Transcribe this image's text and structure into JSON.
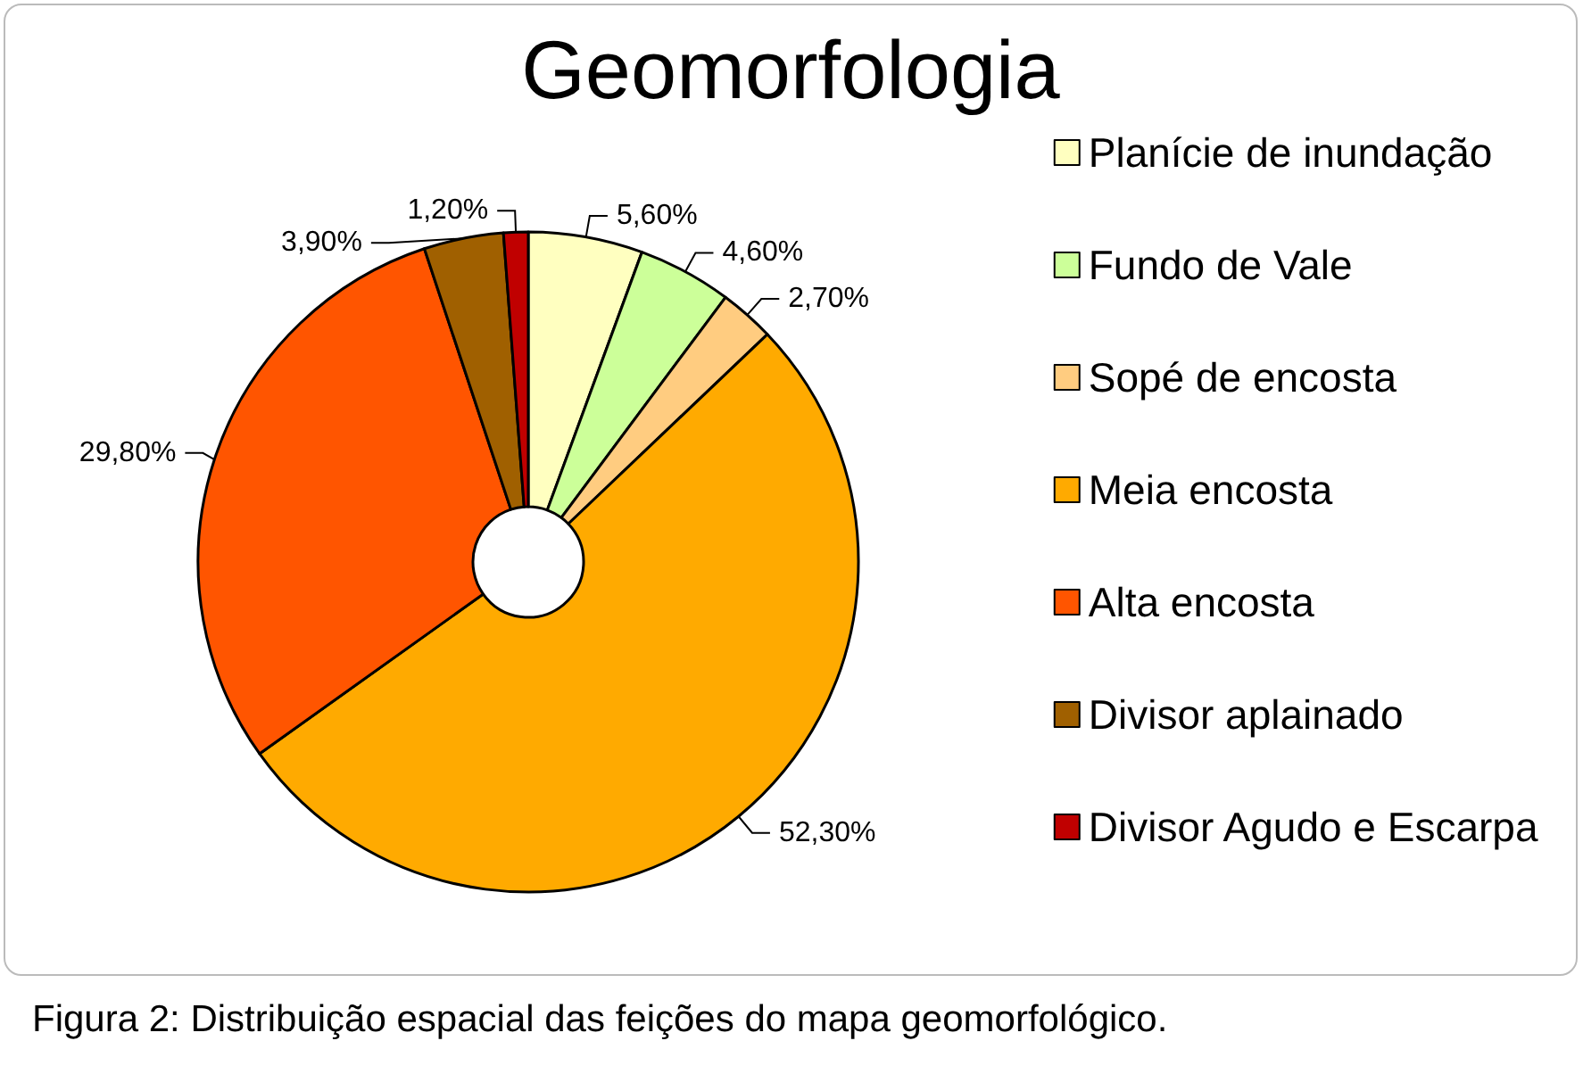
{
  "chart_data": {
    "type": "pie",
    "title": "Geomorfologia",
    "categories": [
      "Planície de inundação",
      "Fundo de Vale",
      "Sopé de encosta",
      "Meia encosta",
      "Alta encosta",
      "Divisor aplainado",
      "Divisor Agudo e Escarpa"
    ],
    "values": [
      5.6,
      4.6,
      2.7,
      52.3,
      29.8,
      3.9,
      1.2
    ],
    "value_labels": [
      "5,60%",
      "4,60%",
      "2,70%",
      "52,30%",
      "29,80%",
      "3,90%",
      "1,20%"
    ],
    "colors": [
      "#ffffc0",
      "#ccff99",
      "#ffcc80",
      "#ffaa00",
      "#ff5500",
      "#a06000",
      "#c00000"
    ],
    "legend": "right",
    "annotations": [
      "Figura 2: Distribuição espacial das feições do mapa geomorfológico."
    ]
  }
}
